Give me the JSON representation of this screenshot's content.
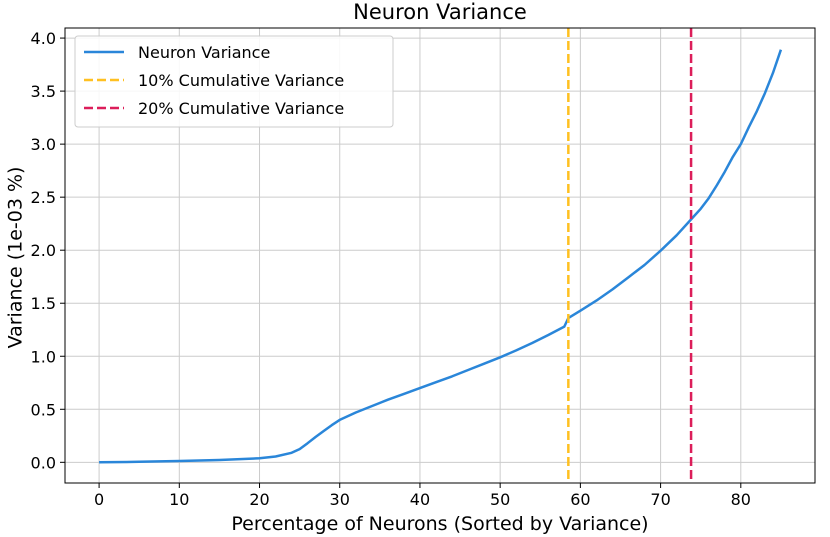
{
  "chart_data": {
    "type": "line",
    "title": "Neuron Variance",
    "xlabel": "Percentage of Neurons (Sorted by Variance)",
    "ylabel": "Variance (1e-03 %)",
    "xlim": [
      -4.25,
      89.25
    ],
    "ylim": [
      -0.195,
      4.095
    ],
    "xticks": [
      0,
      10,
      20,
      30,
      40,
      50,
      60,
      70,
      80
    ],
    "yticks": [
      0.0,
      0.5,
      1.0,
      1.5,
      2.0,
      2.5,
      3.0,
      3.5,
      4.0
    ],
    "xtick_labels": [
      "0",
      "10",
      "20",
      "30",
      "40",
      "50",
      "60",
      "70",
      "80"
    ],
    "ytick_labels": [
      "0.0",
      "0.5",
      "1.0",
      "1.5",
      "2.0",
      "2.5",
      "3.0",
      "3.5",
      "4.0"
    ],
    "grid": true,
    "legend_position": "top-left",
    "series": [
      {
        "name": "Neuron Variance",
        "color": "#2a86d9",
        "style": "solid",
        "x": [
          0,
          5,
          10,
          15,
          20,
          22,
          24,
          25,
          26,
          27,
          28,
          29,
          30,
          32,
          34,
          36,
          38,
          40,
          42,
          44,
          46,
          48,
          50,
          52,
          54,
          56,
          58,
          58.5,
          60,
          62,
          64,
          66,
          68,
          70,
          72,
          73.8,
          75,
          76,
          77,
          78,
          79,
          80,
          81,
          82,
          83,
          84,
          85
        ],
        "values": [
          0.0,
          0.005,
          0.012,
          0.022,
          0.038,
          0.055,
          0.09,
          0.125,
          0.18,
          0.24,
          0.295,
          0.35,
          0.4,
          0.47,
          0.53,
          0.59,
          0.645,
          0.7,
          0.755,
          0.81,
          0.87,
          0.93,
          0.99,
          1.055,
          1.125,
          1.2,
          1.28,
          1.36,
          1.43,
          1.525,
          1.63,
          1.745,
          1.86,
          1.995,
          2.14,
          2.29,
          2.39,
          2.49,
          2.61,
          2.74,
          2.88,
          3.0,
          3.16,
          3.31,
          3.48,
          3.67,
          3.89
        ]
      },
      {
        "name": "10% Cumulative Variance",
        "color": "#ffc021",
        "style": "dashed",
        "x_value": 58.5
      },
      {
        "name": "20% Cumulative Variance",
        "color": "#dc1e5a",
        "style": "dashed",
        "x_value": 73.8
      }
    ]
  }
}
